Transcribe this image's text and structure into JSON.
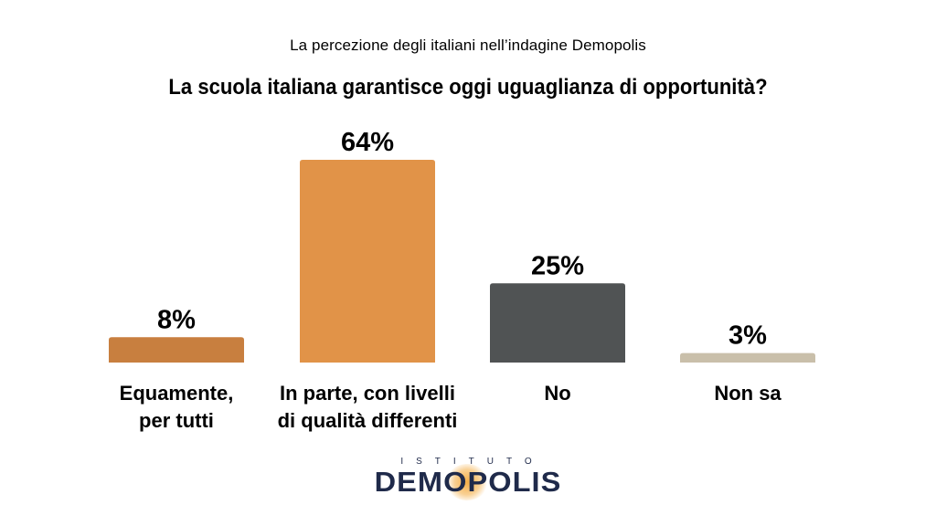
{
  "header": {
    "subtitle": "La percezione degli italiani nell’indagine Demopolis",
    "title": "La scuola italiana garantisce oggi uguaglianza di opportunità?"
  },
  "chart_data": {
    "type": "bar",
    "title": "La scuola italiana garantisce oggi uguaglianza di opportunità?",
    "subtitle": "La percezione degli italiani nell’indagine Demopolis",
    "categories": [
      [
        "Equamente,",
        "per tutti"
      ],
      [
        "In parte, con livelli",
        "di qualità differenti"
      ],
      [
        "No"
      ],
      [
        "Non sa"
      ]
    ],
    "values": [
      8,
      64,
      25,
      3
    ],
    "value_labels": [
      "8%",
      "64%",
      "25%",
      "3%"
    ],
    "colors": [
      "#c87f3f",
      "#e19348",
      "#505354",
      "#c9bfaa"
    ],
    "unit": "%",
    "ylim": [
      0,
      64
    ],
    "grid": false,
    "legend": "none"
  },
  "logo": {
    "top_text": "ISTITUTO",
    "main_text": "DEMOPOLIS"
  }
}
